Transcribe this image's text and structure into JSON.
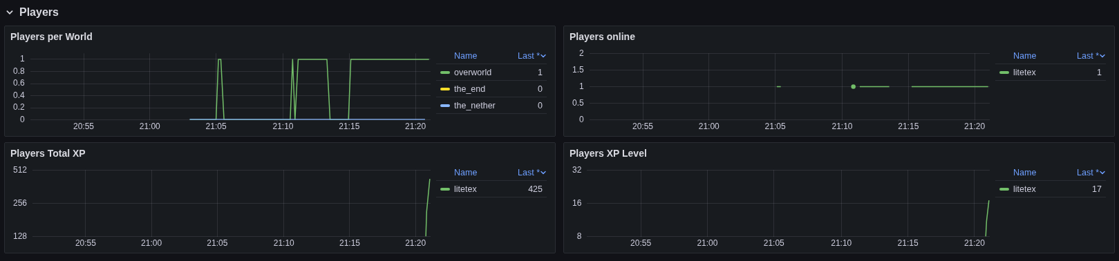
{
  "chart_data": [
    {
      "type": "other",
      "title": "Players"
    },
    {
      "type": "line",
      "title": "Players per World",
      "legend": "right",
      "grid": true,
      "annotations": [
        "Name",
        "Last *",
        "1",
        "0",
        "0"
      ],
      "xlim": [
        20.85,
        21.352
      ],
      "xticks": [
        {
          "value": 20.917,
          "label": "20:55"
        },
        {
          "value": 21,
          "label": "21:00"
        },
        {
          "value": 21.083,
          "label": "21:05"
        },
        {
          "value": 21.167,
          "label": "21:10"
        },
        {
          "value": 21.25,
          "label": "21:15"
        },
        {
          "value": 21.333,
          "label": "21:20"
        }
      ],
      "ylim": [
        0,
        1.1
      ],
      "yticks": [
        0,
        0.2,
        0.4,
        0.6,
        0.8,
        1
      ],
      "series": [
        {
          "name": "overworld",
          "color": "#73bf69",
          "x": [
            21.05,
            21.083,
            21.086,
            21.089,
            21.093,
            21.176,
            21.179,
            21.182,
            21.186,
            21.222,
            21.226,
            21.249,
            21.252,
            21.35
          ],
          "values": [
            0,
            0,
            1,
            1,
            0,
            0,
            1,
            0,
            1,
            1,
            0,
            0,
            1,
            1
          ]
        },
        {
          "name": "the_end",
          "color": "#fade2a",
          "values": [
            null
          ]
        },
        {
          "name": "the_nether",
          "color": "#8ab8ff",
          "x": [
            21.05,
            21.345
          ],
          "values": [
            0,
            0
          ]
        }
      ]
    },
    {
      "type": "line",
      "title": "Players online",
      "legend": "right",
      "grid": true,
      "annotations": [
        "Name",
        "Last *",
        "1"
      ],
      "xlim": [
        20.85,
        21.352
      ],
      "xticks": [
        {
          "value": 20.917,
          "label": "20:55"
        },
        {
          "value": 21,
          "label": "21:00"
        },
        {
          "value": 21.083,
          "label": "21:05"
        },
        {
          "value": 21.167,
          "label": "21:10"
        },
        {
          "value": 21.25,
          "label": "21:15"
        },
        {
          "value": 21.333,
          "label": "21:20"
        }
      ],
      "ylim": [
        0,
        2
      ],
      "yticks": [
        0,
        0.5,
        1,
        1.5,
        2
      ],
      "series": [
        {
          "name": "litetex",
          "color": "#73bf69",
          "x": [
            21.085,
            21.09,
            21.1,
            21.181,
            21.185,
            21.189,
            21.226,
            21.23,
            21.254,
            21.35
          ],
          "values": [
            1,
            1,
            null,
            1,
            null,
            1,
            1,
            null,
            1,
            1
          ]
        }
      ]
    },
    {
      "type": "line",
      "title": "Players Total XP",
      "legend": "right",
      "grid": true,
      "log": "y",
      "annotations": [
        "Name",
        "Last *",
        "425"
      ],
      "xlim": [
        20.85,
        21.352
      ],
      "xticks": [
        {
          "value": 20.917,
          "label": "20:55"
        },
        {
          "value": 21,
          "label": "21:00"
        },
        {
          "value": 21.083,
          "label": "21:05"
        },
        {
          "value": 21.167,
          "label": "21:10"
        },
        {
          "value": 21.25,
          "label": "21:15"
        },
        {
          "value": 21.333,
          "label": "21:20"
        }
      ],
      "ylim": [
        128,
        512
      ],
      "yticks": [
        128,
        256,
        512
      ],
      "series": [
        {
          "name": "litetex",
          "color": "#73bf69",
          "x": [
            21.346,
            21.347,
            21.351
          ],
          "values": [
            128,
            215,
            425
          ]
        }
      ]
    },
    {
      "type": "line",
      "title": "Players XP Level",
      "legend": "right",
      "grid": true,
      "log": "y",
      "annotations": [
        "Name",
        "Last *",
        "17"
      ],
      "xlim": [
        20.85,
        21.352
      ],
      "xticks": [
        {
          "value": 20.917,
          "label": "20:55"
        },
        {
          "value": 21,
          "label": "21:00"
        },
        {
          "value": 21.083,
          "label": "21:05"
        },
        {
          "value": 21.167,
          "label": "21:10"
        },
        {
          "value": 21.25,
          "label": "21:15"
        },
        {
          "value": 21.333,
          "label": "21:20"
        }
      ],
      "ylim": [
        8,
        32
      ],
      "yticks": [
        8,
        16,
        32
      ],
      "series": [
        {
          "name": "litetex",
          "color": "#73bf69",
          "x": [
            21.347,
            21.348,
            21.351
          ],
          "values": [
            8,
            11,
            17
          ]
        }
      ]
    }
  ]
}
